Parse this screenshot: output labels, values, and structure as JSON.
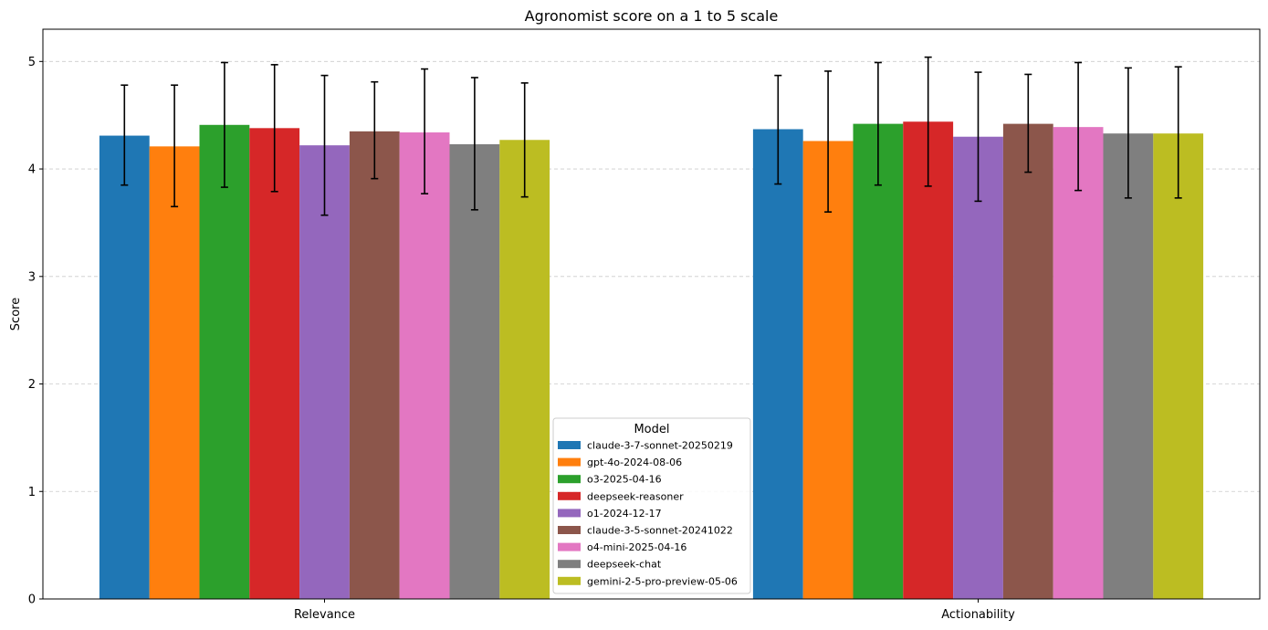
{
  "chart_data": {
    "type": "bar",
    "title": "Agronomist score on a 1 to 5 scale",
    "xlabel": "",
    "ylabel": "Score",
    "ylim": [
      0,
      5.3
    ],
    "yticks": [
      0,
      1,
      2,
      3,
      4,
      5
    ],
    "grid": "y-dashed",
    "categories": [
      "Relevance",
      "Actionability"
    ],
    "legend": {
      "title": "Model",
      "placement": "bottom-center"
    },
    "series": [
      {
        "name": "claude-3-7-sonnet-20250219",
        "color": "#1f77b4",
        "values": [
          4.31,
          4.37
        ],
        "err_low": [
          3.85,
          3.86
        ],
        "err_high": [
          4.78,
          4.87
        ]
      },
      {
        "name": "gpt-4o-2024-08-06",
        "color": "#ff7f0e",
        "values": [
          4.21,
          4.26
        ],
        "err_low": [
          3.65,
          3.6
        ],
        "err_high": [
          4.78,
          4.91
        ]
      },
      {
        "name": "o3-2025-04-16",
        "color": "#2ca02c",
        "values": [
          4.41,
          4.42
        ],
        "err_low": [
          3.83,
          3.85
        ],
        "err_high": [
          4.99,
          4.99
        ]
      },
      {
        "name": "deepseek-reasoner",
        "color": "#d62728",
        "values": [
          4.38,
          4.44
        ],
        "err_low": [
          3.79,
          3.84
        ],
        "err_high": [
          4.97,
          5.04
        ]
      },
      {
        "name": "o1-2024-12-17",
        "color": "#9467bd",
        "values": [
          4.22,
          4.3
        ],
        "err_low": [
          3.57,
          3.7
        ],
        "err_high": [
          4.87,
          4.9
        ]
      },
      {
        "name": "claude-3-5-sonnet-20241022",
        "color": "#8c564b",
        "values": [
          4.35,
          4.42
        ],
        "err_low": [
          3.91,
          3.97
        ],
        "err_high": [
          4.81,
          4.88
        ]
      },
      {
        "name": "o4-mini-2025-04-16",
        "color": "#e377c2",
        "values": [
          4.34,
          4.39
        ],
        "err_low": [
          3.77,
          3.8
        ],
        "err_high": [
          4.93,
          4.99
        ]
      },
      {
        "name": "deepseek-chat",
        "color": "#7f7f7f",
        "values": [
          4.23,
          4.33
        ],
        "err_low": [
          3.62,
          3.73
        ],
        "err_high": [
          4.85,
          4.94
        ]
      },
      {
        "name": "gemini-2-5-pro-preview-05-06",
        "color": "#bcbd22",
        "values": [
          4.27,
          4.33
        ],
        "err_low": [
          3.74,
          3.73
        ],
        "err_high": [
          4.8,
          4.95
        ]
      }
    ]
  }
}
